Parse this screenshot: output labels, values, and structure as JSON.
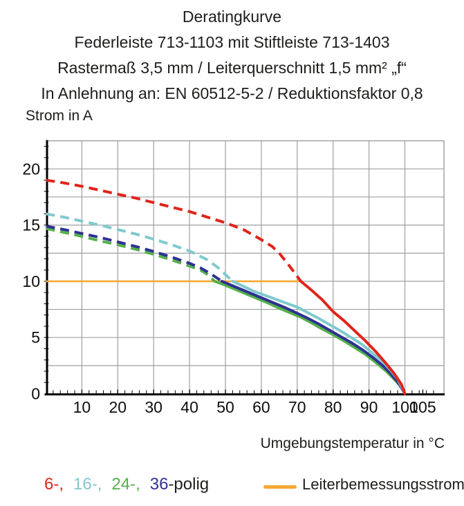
{
  "header": {
    "lines": [
      "Deratingkurve",
      "Federleiste 713-1103 mit Stiftleiste 713-1403",
      "Rastermaß 3,5 mm / Leiterquerschnitt 1,5 mm² „f“",
      "In Anlehnung an: EN 60512-5-2 / Reduktionsfaktor 0,8"
    ]
  },
  "axes": {
    "y_label": "Strom in A",
    "x_label": "Umgebungstemperatur in °C"
  },
  "legend": {
    "items": [
      {
        "label": "6-,",
        "color": "#e0241b"
      },
      {
        "label": "16-,",
        "color": "#7fc9ce"
      },
      {
        "label": "24-,",
        "color": "#54b04a"
      },
      {
        "label": "36",
        "color": "#2e3192"
      }
    ],
    "suffix": "-polig",
    "limit": {
      "label": "Leiterbemessungsstrom",
      "color": "#f7a834"
    }
  },
  "chart_data": {
    "type": "line",
    "title": "Deratingkurve",
    "xlabel": "Umgebungstemperatur in °C",
    "ylabel": "Strom in A",
    "xlim": [
      0,
      110.9
    ],
    "ylim": [
      0,
      22.5
    ],
    "x_ticks": [
      10,
      20,
      30,
      40,
      50,
      60,
      70,
      80,
      90,
      100,
      105
    ],
    "y_ticks": [
      0,
      5,
      10,
      15,
      20
    ],
    "x_grid_step": 10,
    "y_grid_step": 2.5,
    "x_minor_step": 2,
    "y_minor_step": 1,
    "grid": true,
    "grid_color": "#9d9fa2",
    "legend_position": "bottom-left",
    "limit_line": {
      "name": "Leiterbemessungsstrom",
      "value": 10,
      "x_start": 0,
      "x_end": 71.5,
      "color": "#f7a834"
    },
    "series": [
      {
        "name": "6-polig",
        "color": "#e0241b",
        "dashed": [
          [
            0,
            19
          ],
          [
            5,
            18.75
          ],
          [
            10,
            18.45
          ],
          [
            15,
            18.1
          ],
          [
            20,
            17.75
          ],
          [
            25,
            17.4
          ],
          [
            30,
            17.0
          ],
          [
            35,
            16.6
          ],
          [
            40,
            16.2
          ],
          [
            45,
            15.7
          ],
          [
            50,
            15.2
          ],
          [
            55,
            14.6
          ],
          [
            60,
            13.7
          ],
          [
            63,
            13.1
          ],
          [
            65,
            12.5
          ],
          [
            68,
            11.3
          ],
          [
            71,
            10
          ]
        ],
        "solid": [
          [
            71,
            10
          ],
          [
            74,
            9.2
          ],
          [
            77,
            8.35
          ],
          [
            80,
            7.3
          ],
          [
            83,
            6.5
          ],
          [
            86,
            5.6
          ],
          [
            89,
            4.7
          ],
          [
            92,
            3.7
          ],
          [
            95,
            2.6
          ],
          [
            97,
            1.8
          ],
          [
            99,
            0.85
          ],
          [
            100,
            0
          ]
        ]
      },
      {
        "name": "16-polig",
        "color": "#7fc9ce",
        "dashed": [
          [
            0,
            16
          ],
          [
            5,
            15.7
          ],
          [
            10,
            15.35
          ],
          [
            15,
            15.0
          ],
          [
            20,
            14.6
          ],
          [
            25,
            14.2
          ],
          [
            30,
            13.75
          ],
          [
            35,
            13.25
          ],
          [
            40,
            12.7
          ],
          [
            45,
            11.9
          ],
          [
            48,
            11.2
          ],
          [
            50,
            10.6
          ],
          [
            52,
            10
          ]
        ],
        "solid": [
          [
            52,
            10
          ],
          [
            55,
            9.55
          ],
          [
            58,
            9.1
          ],
          [
            61,
            8.75
          ],
          [
            64,
            8.4
          ],
          [
            67,
            8.05
          ],
          [
            70,
            7.7
          ],
          [
            73,
            7.2
          ],
          [
            76,
            6.7
          ],
          [
            79,
            6.15
          ],
          [
            82,
            5.6
          ],
          [
            85,
            5.0
          ],
          [
            88,
            4.4
          ],
          [
            91,
            3.6
          ],
          [
            94,
            2.8
          ],
          [
            96,
            2.1
          ],
          [
            98,
            1.3
          ],
          [
            100,
            0
          ]
        ]
      },
      {
        "name": "24-polig",
        "color": "#54b04a",
        "dashed": [
          [
            0,
            14.7
          ],
          [
            5,
            14.35
          ],
          [
            10,
            14.0
          ],
          [
            15,
            13.6
          ],
          [
            20,
            13.25
          ],
          [
            25,
            12.85
          ],
          [
            30,
            12.4
          ],
          [
            35,
            11.9
          ],
          [
            40,
            11.35
          ],
          [
            43,
            11.0
          ],
          [
            45,
            10.6
          ],
          [
            47,
            10
          ]
        ],
        "solid": [
          [
            47,
            10
          ],
          [
            50,
            9.65
          ],
          [
            53,
            9.25
          ],
          [
            56,
            8.85
          ],
          [
            59,
            8.45
          ],
          [
            62,
            8.05
          ],
          [
            65,
            7.6
          ],
          [
            68,
            7.2
          ],
          [
            71,
            6.8
          ],
          [
            74,
            6.3
          ],
          [
            77,
            5.75
          ],
          [
            80,
            5.25
          ],
          [
            83,
            4.7
          ],
          [
            86,
            4.1
          ],
          [
            89,
            3.5
          ],
          [
            92,
            2.75
          ],
          [
            95,
            1.95
          ],
          [
            97,
            1.3
          ],
          [
            99,
            0.6
          ],
          [
            100,
            0
          ]
        ]
      },
      {
        "name": "36-polig",
        "color": "#2e3192",
        "dashed": [
          [
            0,
            14.9
          ],
          [
            5,
            14.6
          ],
          [
            10,
            14.25
          ],
          [
            15,
            13.9
          ],
          [
            20,
            13.5
          ],
          [
            25,
            13.1
          ],
          [
            30,
            12.65
          ],
          [
            35,
            12.15
          ],
          [
            40,
            11.6
          ],
          [
            43,
            11.2
          ],
          [
            46,
            10.65
          ],
          [
            49,
            10
          ]
        ],
        "solid": [
          [
            49,
            10
          ],
          [
            52,
            9.6
          ],
          [
            55,
            9.2
          ],
          [
            58,
            8.8
          ],
          [
            61,
            8.4
          ],
          [
            64,
            8.0
          ],
          [
            67,
            7.6
          ],
          [
            70,
            7.15
          ],
          [
            73,
            6.7
          ],
          [
            76,
            6.2
          ],
          [
            79,
            5.65
          ],
          [
            82,
            5.1
          ],
          [
            85,
            4.55
          ],
          [
            88,
            3.95
          ],
          [
            91,
            3.25
          ],
          [
            94,
            2.45
          ],
          [
            96,
            1.8
          ],
          [
            98,
            1.05
          ],
          [
            100,
            0
          ]
        ]
      }
    ]
  }
}
